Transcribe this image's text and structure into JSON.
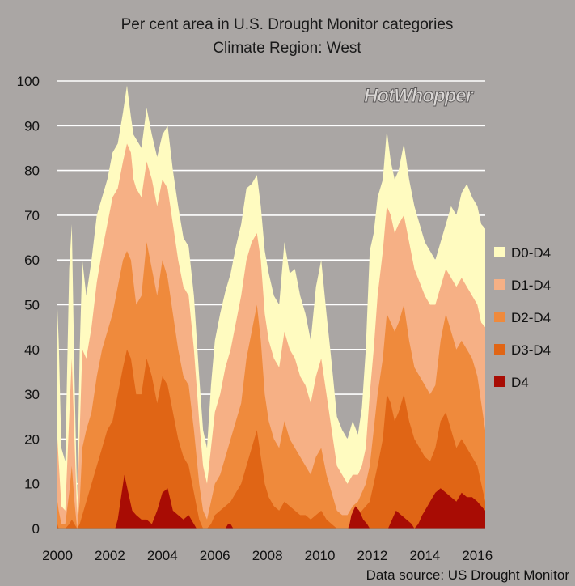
{
  "chart_data": {
    "type": "area",
    "title": [
      "Per cent area in U.S. Drought Monitor categories",
      "Climate Region:  West"
    ],
    "xlabel": "",
    "ylabel": "",
    "xlim": [
      2000,
      2016.3
    ],
    "ylim": [
      0,
      100
    ],
    "xticks": [
      2000,
      2002,
      2004,
      2006,
      2008,
      2010,
      2012,
      2014,
      2016
    ],
    "yticks": [
      0,
      10,
      20,
      30,
      40,
      50,
      60,
      70,
      80,
      90,
      100
    ],
    "grid": true,
    "legend_position": "right",
    "watermark": "HotWhopper",
    "source": "Data source: US Drought Monitor",
    "series": [
      {
        "name": "D0-D4",
        "color": "#fffbc0",
        "x": [
          2000.0,
          2000.05,
          2000.15,
          2000.3,
          2000.45,
          2000.55,
          2000.65,
          2000.75,
          2000.85,
          2000.95,
          2001.1,
          2001.3,
          2001.5,
          2001.7,
          2001.9,
          2002.1,
          2002.3,
          2002.5,
          2002.65,
          2002.8,
          2002.9,
          2003.0,
          2003.2,
          2003.4,
          2003.6,
          2003.8,
          2004.0,
          2004.2,
          2004.4,
          2004.6,
          2004.8,
          2005.0,
          2005.2,
          2005.4,
          2005.55,
          2005.7,
          2005.85,
          2006.0,
          2006.2,
          2006.4,
          2006.6,
          2006.8,
          2007.0,
          2007.2,
          2007.4,
          2007.6,
          2007.75,
          2007.9,
          2008.05,
          2008.25,
          2008.45,
          2008.65,
          2008.85,
          2009.05,
          2009.25,
          2009.45,
          2009.65,
          2009.85,
          2010.05,
          2010.25,
          2010.45,
          2010.65,
          2010.85,
          2011.05,
          2011.25,
          2011.45,
          2011.6,
          2011.75,
          2011.9,
          2012.05,
          2012.2,
          2012.4,
          2012.55,
          2012.7,
          2012.85,
          2013.0,
          2013.2,
          2013.4,
          2013.6,
          2013.8,
          2014.0,
          2014.2,
          2014.4,
          2014.6,
          2014.8,
          2015.0,
          2015.2,
          2015.4,
          2015.6,
          2015.8,
          2016.0,
          2016.15,
          2016.3
        ],
        "values": [
          49,
          42,
          18,
          15,
          58,
          68,
          34,
          7,
          40,
          60,
          52,
          60,
          70,
          74,
          78,
          84,
          86,
          93,
          99,
          92,
          88,
          87,
          85,
          94,
          88,
          83,
          88,
          90,
          80,
          72,
          65,
          63,
          52,
          34,
          22,
          18,
          32,
          42,
          48,
          53,
          57,
          63,
          68,
          76,
          77,
          79,
          72,
          62,
          57,
          52,
          50,
          64,
          57,
          58,
          52,
          48,
          42,
          54,
          60,
          48,
          37,
          25,
          22,
          20,
          24,
          21,
          27,
          40,
          62,
          66,
          74,
          78,
          89,
          82,
          78,
          80,
          86,
          78,
          72,
          68,
          64,
          62,
          60,
          64,
          68,
          72,
          70,
          75,
          77,
          74,
          72,
          68,
          67
        ]
      },
      {
        "name": "D1-D4",
        "color": "#f6b085",
        "x": [
          2000.0,
          2000.05,
          2000.15,
          2000.3,
          2000.45,
          2000.55,
          2000.65,
          2000.75,
          2000.85,
          2000.95,
          2001.1,
          2001.3,
          2001.5,
          2001.7,
          2001.9,
          2002.1,
          2002.3,
          2002.5,
          2002.65,
          2002.8,
          2002.9,
          2003.0,
          2003.2,
          2003.4,
          2003.6,
          2003.8,
          2004.0,
          2004.2,
          2004.4,
          2004.6,
          2004.8,
          2005.0,
          2005.2,
          2005.4,
          2005.55,
          2005.7,
          2005.85,
          2006.0,
          2006.2,
          2006.4,
          2006.6,
          2006.8,
          2007.0,
          2007.2,
          2007.4,
          2007.6,
          2007.75,
          2007.9,
          2008.05,
          2008.25,
          2008.45,
          2008.65,
          2008.85,
          2009.05,
          2009.25,
          2009.45,
          2009.65,
          2009.85,
          2010.05,
          2010.25,
          2010.45,
          2010.65,
          2010.85,
          2011.05,
          2011.25,
          2011.45,
          2011.6,
          2011.75,
          2011.9,
          2012.05,
          2012.2,
          2012.4,
          2012.55,
          2012.7,
          2012.85,
          2013.0,
          2013.2,
          2013.4,
          2013.6,
          2013.8,
          2014.0,
          2014.2,
          2014.4,
          2014.6,
          2014.8,
          2015.0,
          2015.2,
          2015.4,
          2015.6,
          2015.8,
          2016.0,
          2016.15,
          2016.3
        ],
        "values": [
          20,
          15,
          5,
          4,
          25,
          38,
          20,
          3,
          22,
          40,
          38,
          45,
          55,
          62,
          68,
          74,
          76,
          82,
          86,
          84,
          78,
          76,
          74,
          82,
          78,
          72,
          78,
          76,
          68,
          60,
          54,
          52,
          40,
          24,
          14,
          10,
          18,
          26,
          30,
          36,
          40,
          46,
          52,
          60,
          64,
          66,
          60,
          48,
          42,
          38,
          36,
          44,
          40,
          38,
          34,
          32,
          28,
          34,
          38,
          30,
          22,
          14,
          12,
          10,
          12,
          12,
          14,
          18,
          30,
          40,
          52,
          62,
          72,
          70,
          66,
          68,
          70,
          64,
          58,
          55,
          52,
          50,
          50,
          54,
          58,
          56,
          54,
          56,
          54,
          52,
          50,
          46,
          45
        ]
      },
      {
        "name": "D2-D4",
        "color": "#ef8a3c",
        "x": [
          2000.0,
          2000.05,
          2000.15,
          2000.3,
          2000.45,
          2000.55,
          2000.65,
          2000.75,
          2000.85,
          2000.95,
          2001.1,
          2001.3,
          2001.5,
          2001.7,
          2001.9,
          2002.1,
          2002.3,
          2002.5,
          2002.65,
          2002.8,
          2002.9,
          2003.0,
          2003.2,
          2003.4,
          2003.6,
          2003.8,
          2004.0,
          2004.2,
          2004.4,
          2004.6,
          2004.8,
          2005.0,
          2005.2,
          2005.4,
          2005.55,
          2005.7,
          2005.85,
          2006.0,
          2006.2,
          2006.4,
          2006.6,
          2006.8,
          2007.0,
          2007.2,
          2007.4,
          2007.6,
          2007.75,
          2007.9,
          2008.05,
          2008.25,
          2008.45,
          2008.65,
          2008.85,
          2009.05,
          2009.25,
          2009.45,
          2009.65,
          2009.85,
          2010.05,
          2010.25,
          2010.45,
          2010.65,
          2010.85,
          2011.05,
          2011.25,
          2011.45,
          2011.6,
          2011.75,
          2011.9,
          2012.05,
          2012.2,
          2012.4,
          2012.55,
          2012.7,
          2012.85,
          2013.0,
          2013.2,
          2013.4,
          2013.6,
          2013.8,
          2014.0,
          2014.2,
          2014.4,
          2014.6,
          2014.8,
          2015.0,
          2015.2,
          2015.4,
          2015.6,
          2015.8,
          2016.0,
          2016.15,
          2016.3
        ],
        "values": [
          6,
          4,
          1,
          1,
          8,
          14,
          6,
          0,
          6,
          18,
          22,
          26,
          34,
          40,
          44,
          48,
          54,
          60,
          62,
          60,
          55,
          50,
          52,
          64,
          58,
          52,
          60,
          56,
          48,
          40,
          34,
          32,
          22,
          10,
          4,
          2,
          6,
          10,
          12,
          16,
          20,
          24,
          28,
          38,
          44,
          50,
          42,
          30,
          24,
          20,
          18,
          24,
          20,
          18,
          16,
          14,
          12,
          16,
          18,
          12,
          8,
          4,
          3,
          3,
          5,
          6,
          8,
          10,
          14,
          22,
          30,
          38,
          48,
          46,
          44,
          46,
          50,
          42,
          36,
          34,
          32,
          30,
          32,
          42,
          48,
          44,
          40,
          42,
          40,
          38,
          34,
          28,
          22
        ]
      },
      {
        "name": "D3-D4",
        "color": "#e06515",
        "x": [
          2000.0,
          2000.05,
          2000.15,
          2000.3,
          2000.45,
          2000.55,
          2000.65,
          2000.75,
          2000.85,
          2000.95,
          2001.1,
          2001.3,
          2001.5,
          2001.7,
          2001.9,
          2002.1,
          2002.3,
          2002.5,
          2002.65,
          2002.8,
          2002.9,
          2003.0,
          2003.2,
          2003.4,
          2003.6,
          2003.8,
          2004.0,
          2004.2,
          2004.4,
          2004.6,
          2004.8,
          2005.0,
          2005.2,
          2005.4,
          2005.55,
          2005.7,
          2005.85,
          2006.0,
          2006.2,
          2006.4,
          2006.6,
          2006.8,
          2007.0,
          2007.2,
          2007.4,
          2007.6,
          2007.75,
          2007.9,
          2008.05,
          2008.25,
          2008.45,
          2008.65,
          2008.85,
          2009.05,
          2009.25,
          2009.45,
          2009.65,
          2009.85,
          2010.05,
          2010.25,
          2010.45,
          2010.65,
          2010.85,
          2011.05,
          2011.25,
          2011.45,
          2011.6,
          2011.75,
          2011.9,
          2012.05,
          2012.2,
          2012.4,
          2012.55,
          2012.7,
          2012.85,
          2013.0,
          2013.2,
          2013.4,
          2013.6,
          2013.8,
          2014.0,
          2014.2,
          2014.4,
          2014.6,
          2014.8,
          2015.0,
          2015.2,
          2015.4,
          2015.6,
          2015.8,
          2016.0,
          2016.15,
          2016.3
        ],
        "values": [
          1,
          0,
          0,
          0,
          1,
          2,
          1,
          0,
          1,
          3,
          6,
          10,
          14,
          18,
          22,
          24,
          30,
          36,
          40,
          38,
          34,
          30,
          30,
          38,
          34,
          28,
          34,
          32,
          26,
          20,
          16,
          14,
          8,
          2,
          0,
          0,
          1,
          3,
          4,
          5,
          6,
          8,
          10,
          14,
          18,
          22,
          16,
          10,
          7,
          5,
          4,
          6,
          5,
          4,
          3,
          3,
          2,
          3,
          4,
          2,
          1,
          0,
          0,
          0,
          2,
          3,
          4,
          5,
          6,
          10,
          14,
          20,
          30,
          28,
          24,
          26,
          30,
          24,
          20,
          18,
          16,
          15,
          18,
          24,
          26,
          22,
          18,
          20,
          18,
          16,
          14,
          10,
          6
        ]
      },
      {
        "name": "D4",
        "color": "#a80c04",
        "x": [
          2000.0,
          2002.2,
          2002.3,
          2002.4,
          2002.55,
          2002.7,
          2002.85,
          2003.0,
          2003.2,
          2003.4,
          2003.6,
          2003.8,
          2004.0,
          2004.2,
          2004.4,
          2004.6,
          2004.8,
          2005.0,
          2005.2,
          2005.3,
          2006.4,
          2006.5,
          2006.6,
          2006.7,
          2011.1,
          2011.2,
          2011.35,
          2011.5,
          2011.65,
          2011.8,
          2011.9,
          2012.6,
          2012.75,
          2012.9,
          2013.1,
          2013.3,
          2013.5,
          2013.6,
          2013.75,
          2013.9,
          2014.0,
          2014.2,
          2014.4,
          2014.6,
          2014.8,
          2015.0,
          2015.2,
          2015.4,
          2015.6,
          2015.8,
          2016.0,
          2016.15,
          2016.3
        ],
        "values": [
          0,
          0,
          2,
          6,
          12,
          8,
          4,
          3,
          2,
          2,
          1,
          4,
          8,
          9,
          4,
          3,
          2,
          3,
          1,
          0,
          0,
          1,
          1,
          0,
          0,
          3,
          5,
          4,
          2,
          1,
          0,
          0,
          2,
          4,
          3,
          2,
          1,
          0,
          1,
          3,
          4,
          6,
          8,
          9,
          8,
          7,
          6,
          8,
          7,
          7,
          6,
          5,
          4
        ]
      }
    ]
  }
}
